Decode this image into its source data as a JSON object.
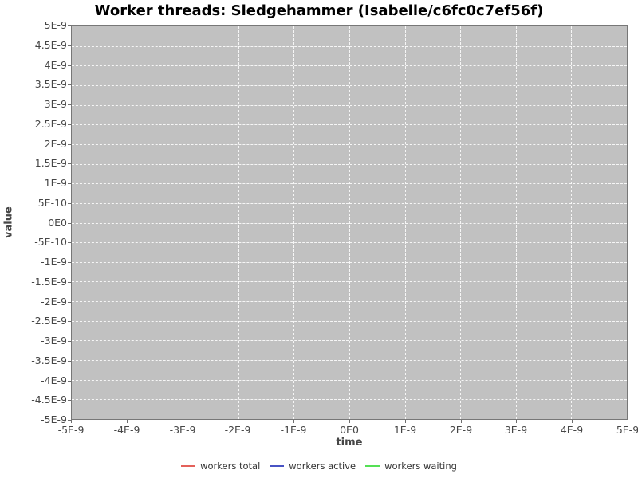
{
  "page": {
    "background": "#ffffff"
  },
  "chart_data": {
    "type": "line",
    "title": "Worker threads: Sledgehammer (Isabelle/c6fc0c7ef56f)",
    "xlabel": "time",
    "ylabel": "value",
    "xlim": [
      -5e-09,
      5e-09
    ],
    "ylim": [
      -5e-09,
      5e-09
    ],
    "x_tick_labels": [
      "-5E-9",
      "-4E-9",
      "-3E-9",
      "-2E-9",
      "-1E-9",
      "0E0",
      "1E-9",
      "2E-9",
      "3E-9",
      "4E-9",
      "5E-9"
    ],
    "y_tick_labels": [
      "5E-9",
      "4.5E-9",
      "4E-9",
      "3.5E-9",
      "3E-9",
      "2.5E-9",
      "2E-9",
      "1.5E-9",
      "1E-9",
      "5E-10",
      "0E0",
      "-5E-10",
      "-1E-9",
      "-1.5E-9",
      "-2E-9",
      "-2.5E-9",
      "-3E-9",
      "-3.5E-9",
      "-4E-9",
      "-4.5E-9",
      "-5E-9"
    ],
    "grid": {
      "visible": true,
      "style": "dashed",
      "color": "#f2f2f2"
    },
    "plot_background": "#c1c1c1",
    "legend_position": "bottom",
    "series": [
      {
        "name": "workers total",
        "color": "#e4615a",
        "x": [],
        "y": []
      },
      {
        "name": "workers active",
        "color": "#4853c4",
        "x": [],
        "y": []
      },
      {
        "name": "workers waiting",
        "color": "#55e055",
        "x": [],
        "y": []
      }
    ]
  }
}
